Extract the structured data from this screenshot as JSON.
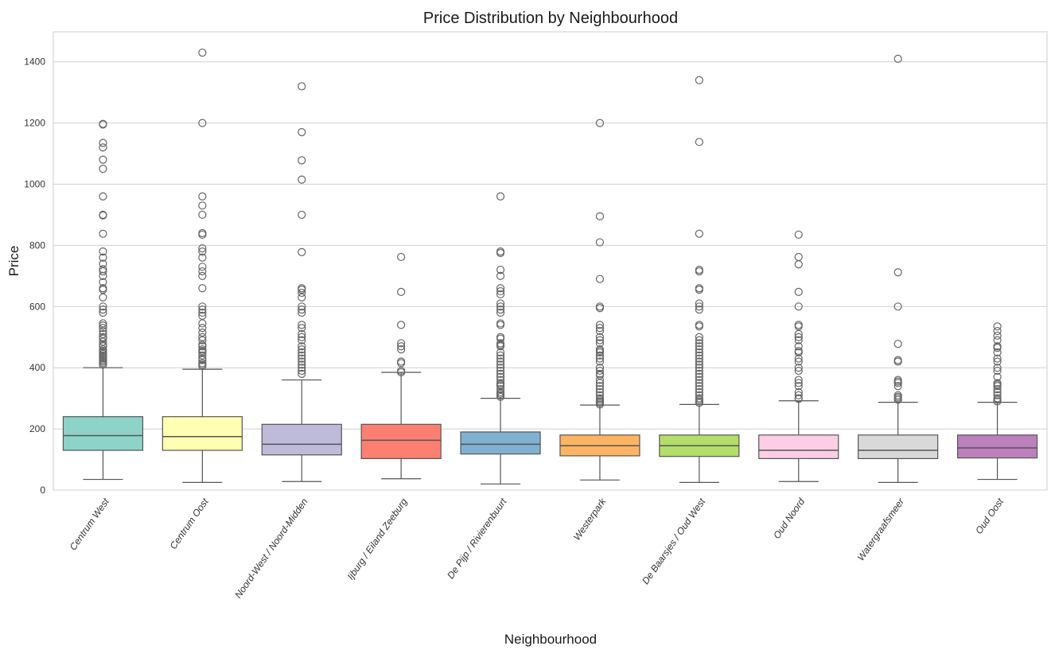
{
  "chart_data": {
    "type": "box",
    "title": "Price Distribution by Neighbourhood",
    "xlabel": "Neighbourhood",
    "ylabel": "Price",
    "ylim": [
      0,
      1500
    ],
    "yticks": [
      0,
      200,
      400,
      600,
      800,
      1000,
      1200,
      1400
    ],
    "grid": "horizontal",
    "categories": [
      "Centrum West",
      "Centrum Oost",
      "Noord-West / Noord-Midden",
      "Ijburg / Eiland Zeeburg",
      "De Pijp / Rivierenbuurt",
      "Westerpark",
      "De Baarsjes / Oud West",
      "Oud Noord",
      "Watergraafsmeer",
      "Oud Oost"
    ],
    "colors": [
      "#8dd3c7",
      "#ffffb3",
      "#bebada",
      "#fb8072",
      "#80b1d3",
      "#fdb462",
      "#b3de69",
      "#fccde5",
      "#d9d9d9",
      "#bc80bd"
    ],
    "boxes": [
      {
        "whisker_low": 35,
        "q1": 130,
        "median": 178,
        "q3": 240,
        "whisker_high": 400,
        "outliers": [
          1197,
          1195,
          1135,
          1120,
          1080,
          1050,
          960,
          900,
          898,
          838,
          780,
          760,
          740,
          722,
          715,
          700,
          680,
          660,
          655,
          630,
          600,
          590,
          580,
          545,
          538,
          530,
          520,
          510,
          500,
          495,
          485,
          475,
          470,
          460,
          455,
          450,
          445,
          440,
          435,
          430,
          425,
          420,
          415,
          410
        ]
      },
      {
        "whisker_low": 25,
        "q1": 130,
        "median": 175,
        "q3": 240,
        "whisker_high": 395,
        "outliers": [
          1430,
          1200,
          960,
          930,
          900,
          840,
          835,
          790,
          780,
          760,
          730,
          715,
          700,
          660,
          600,
          590,
          580,
          570,
          545,
          530,
          515,
          500,
          490,
          475,
          470,
          460,
          455,
          450,
          440,
          430,
          425,
          415,
          410,
          405
        ]
      },
      {
        "whisker_low": 28,
        "q1": 115,
        "median": 150,
        "q3": 215,
        "whisker_high": 360,
        "outliers": [
          1320,
          1170,
          1078,
          1015,
          900,
          778,
          660,
          655,
          645,
          630,
          600,
          590,
          580,
          540,
          530,
          510,
          500,
          490,
          470,
          460,
          450,
          440,
          430,
          420,
          410,
          400,
          390,
          380
        ]
      },
      {
        "whisker_low": 37,
        "q1": 103,
        "median": 163,
        "q3": 215,
        "whisker_high": 385,
        "outliers": [
          762,
          648,
          540,
          480,
          470,
          460,
          420,
          415,
          390,
          385
        ]
      },
      {
        "whisker_low": 20,
        "q1": 118,
        "median": 150,
        "q3": 190,
        "whisker_high": 300,
        "outliers": [
          960,
          780,
          775,
          720,
          700,
          660,
          650,
          640,
          610,
          600,
          590,
          580,
          545,
          540,
          500,
          495,
          480,
          475,
          470,
          450,
          440,
          430,
          420,
          410,
          400,
          390,
          380,
          370,
          360,
          350,
          345,
          340,
          330,
          320,
          315,
          310,
          305
        ]
      },
      {
        "whisker_low": 33,
        "q1": 112,
        "median": 145,
        "q3": 180,
        "whisker_high": 278,
        "outliers": [
          1200,
          895,
          810,
          690,
          600,
          595,
          540,
          530,
          520,
          500,
          490,
          480,
          460,
          455,
          450,
          440,
          430,
          420,
          400,
          390,
          380,
          375,
          360,
          350,
          340,
          330,
          320,
          310,
          300,
          295,
          290,
          285,
          280
        ]
      },
      {
        "whisker_low": 25,
        "q1": 110,
        "median": 145,
        "q3": 180,
        "whisker_high": 280,
        "outliers": [
          1340,
          1138,
          838,
          720,
          715,
          660,
          655,
          610,
          600,
          590,
          540,
          535,
          500,
          490,
          480,
          470,
          460,
          450,
          440,
          430,
          420,
          410,
          400,
          390,
          380,
          370,
          360,
          350,
          340,
          330,
          320,
          310,
          300,
          295,
          290,
          285
        ]
      },
      {
        "whisker_low": 28,
        "q1": 103,
        "median": 130,
        "q3": 180,
        "whisker_high": 292,
        "outliers": [
          835,
          762,
          738,
          648,
          600,
          540,
          535,
          510,
          500,
          490,
          470,
          455,
          450,
          430,
          420,
          400,
          390,
          360,
          350,
          340,
          320,
          310,
          300,
          298
        ]
      },
      {
        "whisker_low": 25,
        "q1": 103,
        "median": 130,
        "q3": 180,
        "whisker_high": 287,
        "outliers": [
          1410,
          712,
          600,
          478,
          425,
          420,
          360,
          355,
          350,
          340,
          310,
          305,
          300,
          295
        ]
      },
      {
        "whisker_low": 35,
        "q1": 105,
        "median": 138,
        "q3": 180,
        "whisker_high": 287,
        "outliers": [
          535,
          520,
          505,
          490,
          470,
          465,
          450,
          430,
          420,
          400,
          390,
          370,
          350,
          345,
          340,
          330,
          320,
          310,
          300,
          295,
          290
        ]
      }
    ]
  }
}
